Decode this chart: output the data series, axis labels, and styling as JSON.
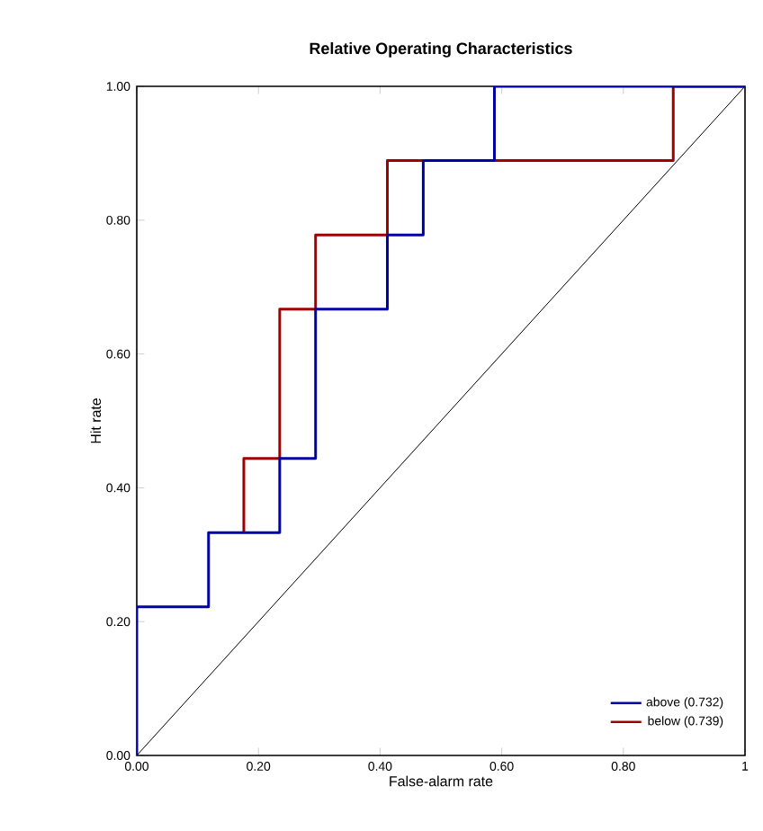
{
  "chart_data": {
    "type": "step",
    "title": "Relative Operating Characteristics",
    "xlabel": "False-alarm rate",
    "ylabel": "Hit rate",
    "xlim": [
      0,
      1
    ],
    "ylim": [
      0,
      1
    ],
    "xticks": [
      {
        "value": 0,
        "label": "0.00"
      },
      {
        "value": 0.2,
        "label": "0.20"
      },
      {
        "value": 0.4,
        "label": "0.40"
      },
      {
        "value": 0.6,
        "label": "0.60"
      },
      {
        "value": 0.8,
        "label": "0.80"
      },
      {
        "value": 1,
        "label": "1"
      }
    ],
    "yticks": [
      {
        "value": 0,
        "label": "0.00"
      },
      {
        "value": 0.2,
        "label": "0.20"
      },
      {
        "value": 0.4,
        "label": "0.40"
      },
      {
        "value": 0.6,
        "label": "0.60"
      },
      {
        "value": 0.8,
        "label": "0.80"
      },
      {
        "value": 1,
        "label": "1.00"
      }
    ],
    "grid": false,
    "legend": "bottom right",
    "series": [
      {
        "type": "line",
        "color": "#000000",
        "x": [
          0,
          1
        ],
        "values": [
          0,
          1
        ]
      },
      {
        "name": "below (0.739)",
        "color": "#a00000",
        "x": [
          0.176,
          0.176,
          0.235,
          0.294,
          0.412,
          0.882,
          1
        ],
        "values": [
          0.333,
          0.444,
          0.667,
          0.778,
          0.889,
          1,
          1
        ]
      },
      {
        "name": "above (0.732)",
        "color": "#0000a8",
        "x": [
          0,
          0,
          0.118,
          0.235,
          0.294,
          0.412,
          0.471,
          0.588,
          1
        ],
        "values": [
          0,
          0.222,
          0.333,
          0.444,
          0.667,
          0.778,
          0.889,
          1,
          1
        ]
      }
    ]
  }
}
